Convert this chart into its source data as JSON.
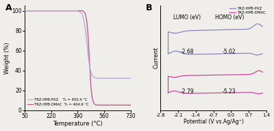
{
  "panel_A": {
    "title": "A",
    "xlabel": "Temperature (°C)",
    "ylabel": "Weight (%)",
    "xlim": [
      50,
      730
    ],
    "ylim": [
      0,
      105
    ],
    "xticks": [
      50,
      220,
      390,
      560,
      730
    ],
    "yticks": [
      0,
      20,
      40,
      60,
      80,
      100
    ],
    "line1_color": "#b8a8d8",
    "line2_color": "#c05898",
    "legend": [
      "TRZ-HPB-PXZ",
      "TRZ-HPB-DMAC"
    ],
    "td1": "Tₕ = 450.4 °C",
    "td2": "Tₕ = 464.9 °C",
    "T1": 450.4,
    "T2": 464.9,
    "drop1_to": 32.0,
    "drop2_to": 5.0,
    "sharpness1": 0.09,
    "sharpness2": 0.13
  },
  "panel_B": {
    "title": "B",
    "xlabel": "Potential (V vs.Ag/Ag⁺)",
    "ylabel": "Current",
    "xlim": [
      -2.8,
      1.4
    ],
    "xticks": [
      -2.8,
      -2.1,
      -1.4,
      -0.7,
      0.0,
      0.7,
      1.4
    ],
    "xtick_labels": [
      "-2.8",
      "-2.1",
      "-1.4",
      "-0.7",
      "0.0",
      "0.7",
      "1.4"
    ],
    "line1_color": "#9080c0",
    "line2_color": "#d040a0",
    "legend": [
      "TRZ-HPB-PXZ",
      "TRZ-HPB-DMAC"
    ],
    "lumo_label": "LUMO (eV)",
    "homo_label": "HOMO (eV)",
    "val_lumo1": "-2.68",
    "val_homo1": "-5.02",
    "val_lumo2": "-2.79",
    "val_homo2": "-5.23"
  },
  "background_color": "#f0eeeb"
}
